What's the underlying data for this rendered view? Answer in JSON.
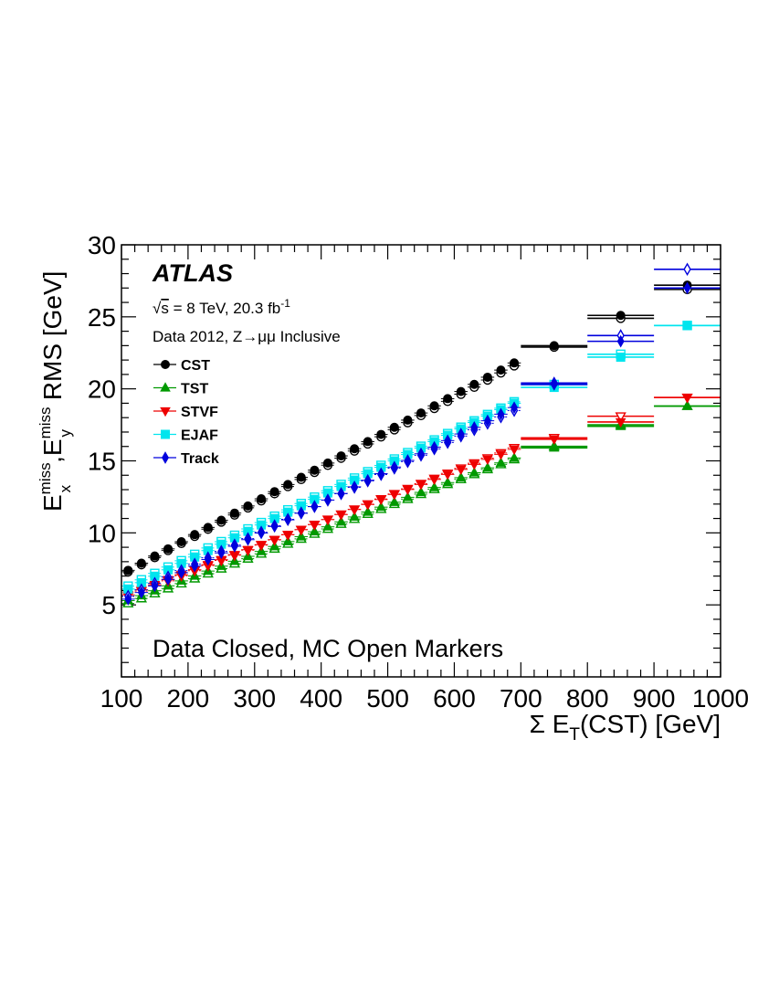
{
  "chart_data": {
    "type": "scatter",
    "xlabel": "Σ E",
    "xlabel_sub": "T",
    "xlabel_tail": "(CST) [GeV]",
    "ylabel_parts": [
      "E",
      "miss",
      "x",
      ",E",
      "miss",
      "y",
      " RMS [GeV]"
    ],
    "xlim": [
      100,
      1000
    ],
    "ylim": [
      0,
      30
    ],
    "xticks": [
      "100",
      "200",
      "300",
      "400",
      "500",
      "600",
      "700",
      "800",
      "900",
      "1000"
    ],
    "xtick_values": [
      100,
      200,
      300,
      400,
      500,
      600,
      700,
      800,
      900,
      1000
    ],
    "yticks": [
      "5",
      "10",
      "15",
      "20",
      "25",
      "30"
    ],
    "ytick_values": [
      5,
      10,
      15,
      20,
      25,
      30
    ],
    "legend_position": "top-left",
    "fine_bins": {
      "start": 100,
      "width": 20,
      "count": 30
    },
    "wide_bins": [
      [
        700,
        800
      ],
      [
        800,
        900
      ],
      [
        900,
        1000
      ]
    ],
    "series": [
      {
        "name": "CST",
        "color": "#000000",
        "marker": "circle",
        "data_fine_start": 7.4,
        "data_fine_end": 21.8,
        "mc_fine_start": 7.3,
        "mc_fine_end": 21.6,
        "data_wide": [
          23.0,
          25.1,
          27.2
        ],
        "mc_wide": [
          22.9,
          24.9,
          26.9
        ]
      },
      {
        "name": "TST",
        "color": "#009900",
        "marker": "triangle-up",
        "data_fine_start": 5.3,
        "data_fine_end": 15.2,
        "mc_fine_start": 5.1,
        "mc_fine_end": 15.1,
        "data_wide": [
          15.9,
          17.4,
          18.8
        ],
        "mc_wide": [
          16.0,
          17.5,
          18.8
        ]
      },
      {
        "name": "STVF",
        "color": "#ee0000",
        "marker": "triangle-down",
        "data_fine_start": 5.7,
        "data_fine_end": 15.8,
        "mc_fine_start": 5.6,
        "mc_fine_end": 15.9,
        "data_wide": [
          16.5,
          17.7,
          19.4
        ],
        "mc_wide": [
          16.6,
          18.1,
          19.4
        ]
      },
      {
        "name": "EJAF",
        "color": "#00e5ee",
        "marker": "square",
        "data_fine_start": 6.1,
        "data_fine_end": 19.0,
        "mc_fine_start": 6.3,
        "mc_fine_end": 19.1,
        "data_wide": [
          20.1,
          22.2,
          24.4
        ],
        "mc_wide": [
          20.3,
          22.4,
          24.4
        ]
      },
      {
        "name": "Track",
        "color": "#0000dd",
        "marker": "diamond",
        "data_fine_start": 5.4,
        "data_fine_end": 18.7,
        "mc_fine_start": 5.6,
        "mc_fine_end": 18.5,
        "data_wide": [
          20.3,
          23.3,
          27.0
        ],
        "mc_wide": [
          20.4,
          23.7,
          28.3
        ]
      }
    ],
    "annotations": {
      "atlas": "ATLAS",
      "energy_prefix": "√",
      "energy_s": "s",
      "energy_text": " = 8 TeV, 20.3 fb",
      "energy_sup": "-1",
      "dataset": "Data 2012, Z→μμ Inclusive",
      "marker_note": "Data Closed, MC Open Markers"
    }
  }
}
